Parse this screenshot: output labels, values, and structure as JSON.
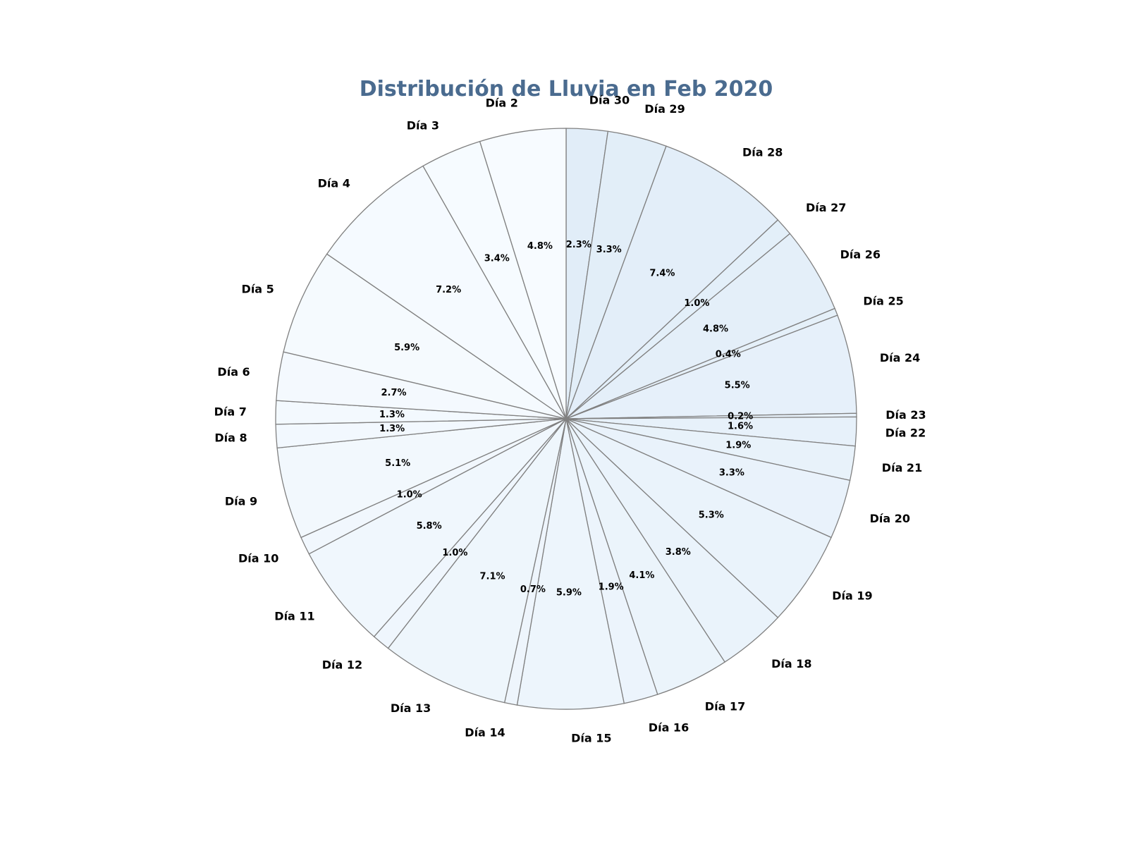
{
  "chart_data": {
    "type": "pie",
    "title": "Distribución de Lluvia en Feb 2020",
    "title_color": "#4a6b8f",
    "edge_color": "#808080",
    "color_start": "#f7fbff",
    "color_end": "#e1edf8",
    "start_angle_deg": 90,
    "direction": "clockwise",
    "slices": [
      {
        "label": "Día 30",
        "value": 2.3,
        "pct_label": "2.3%"
      },
      {
        "label": "Día 29",
        "value": 3.3,
        "pct_label": "3.3%"
      },
      {
        "label": "Día 28",
        "value": 7.4,
        "pct_label": "7.4%"
      },
      {
        "label": "Día 27",
        "value": 1.0,
        "pct_label": "1.0%"
      },
      {
        "label": "Día 26",
        "value": 4.8,
        "pct_label": "4.8%"
      },
      {
        "label": "Día 25",
        "value": 0.4,
        "pct_label": "0.4%"
      },
      {
        "label": "Día 24",
        "value": 5.5,
        "pct_label": "5.5%"
      },
      {
        "label": "Día 23",
        "value": 0.2,
        "pct_label": "0.2%"
      },
      {
        "label": "Día 22",
        "value": 1.6,
        "pct_label": "1.6%"
      },
      {
        "label": "Día 21",
        "value": 1.9,
        "pct_label": "1.9%"
      },
      {
        "label": "Día 20",
        "value": 3.3,
        "pct_label": "3.3%"
      },
      {
        "label": "Día 19",
        "value": 5.3,
        "pct_label": "5.3%"
      },
      {
        "label": "Día 18",
        "value": 3.8,
        "pct_label": "3.8%"
      },
      {
        "label": "Día 17",
        "value": 4.1,
        "pct_label": "4.1%"
      },
      {
        "label": "Día 16",
        "value": 1.9,
        "pct_label": "1.9%"
      },
      {
        "label": "Día 15",
        "value": 5.9,
        "pct_label": "5.9%"
      },
      {
        "label": "Día 14",
        "value": 0.7,
        "pct_label": "0.7%"
      },
      {
        "label": "Día 13",
        "value": 7.1,
        "pct_label": "7.1%"
      },
      {
        "label": "Día 12",
        "value": 1.0,
        "pct_label": "1.0%"
      },
      {
        "label": "Día 11",
        "value": 5.8,
        "pct_label": "5.8%"
      },
      {
        "label": "Día 10",
        "value": 1.0,
        "pct_label": "1.0%"
      },
      {
        "label": "Día 9",
        "value": 5.1,
        "pct_label": "5.1%"
      },
      {
        "label": "Día 8",
        "value": 1.3,
        "pct_label": "1.3%"
      },
      {
        "label": "Día 7",
        "value": 1.3,
        "pct_label": "1.3%"
      },
      {
        "label": "Día 6",
        "value": 2.7,
        "pct_label": "2.7%"
      },
      {
        "label": "Día 5",
        "value": 5.9,
        "pct_label": "5.9%"
      },
      {
        "label": "Día 4",
        "value": 7.2,
        "pct_label": "7.2%"
      },
      {
        "label": "Día 3",
        "value": 3.4,
        "pct_label": "3.4%"
      },
      {
        "label": "Día 2",
        "value": 4.8,
        "pct_label": "4.8%"
      }
    ]
  }
}
